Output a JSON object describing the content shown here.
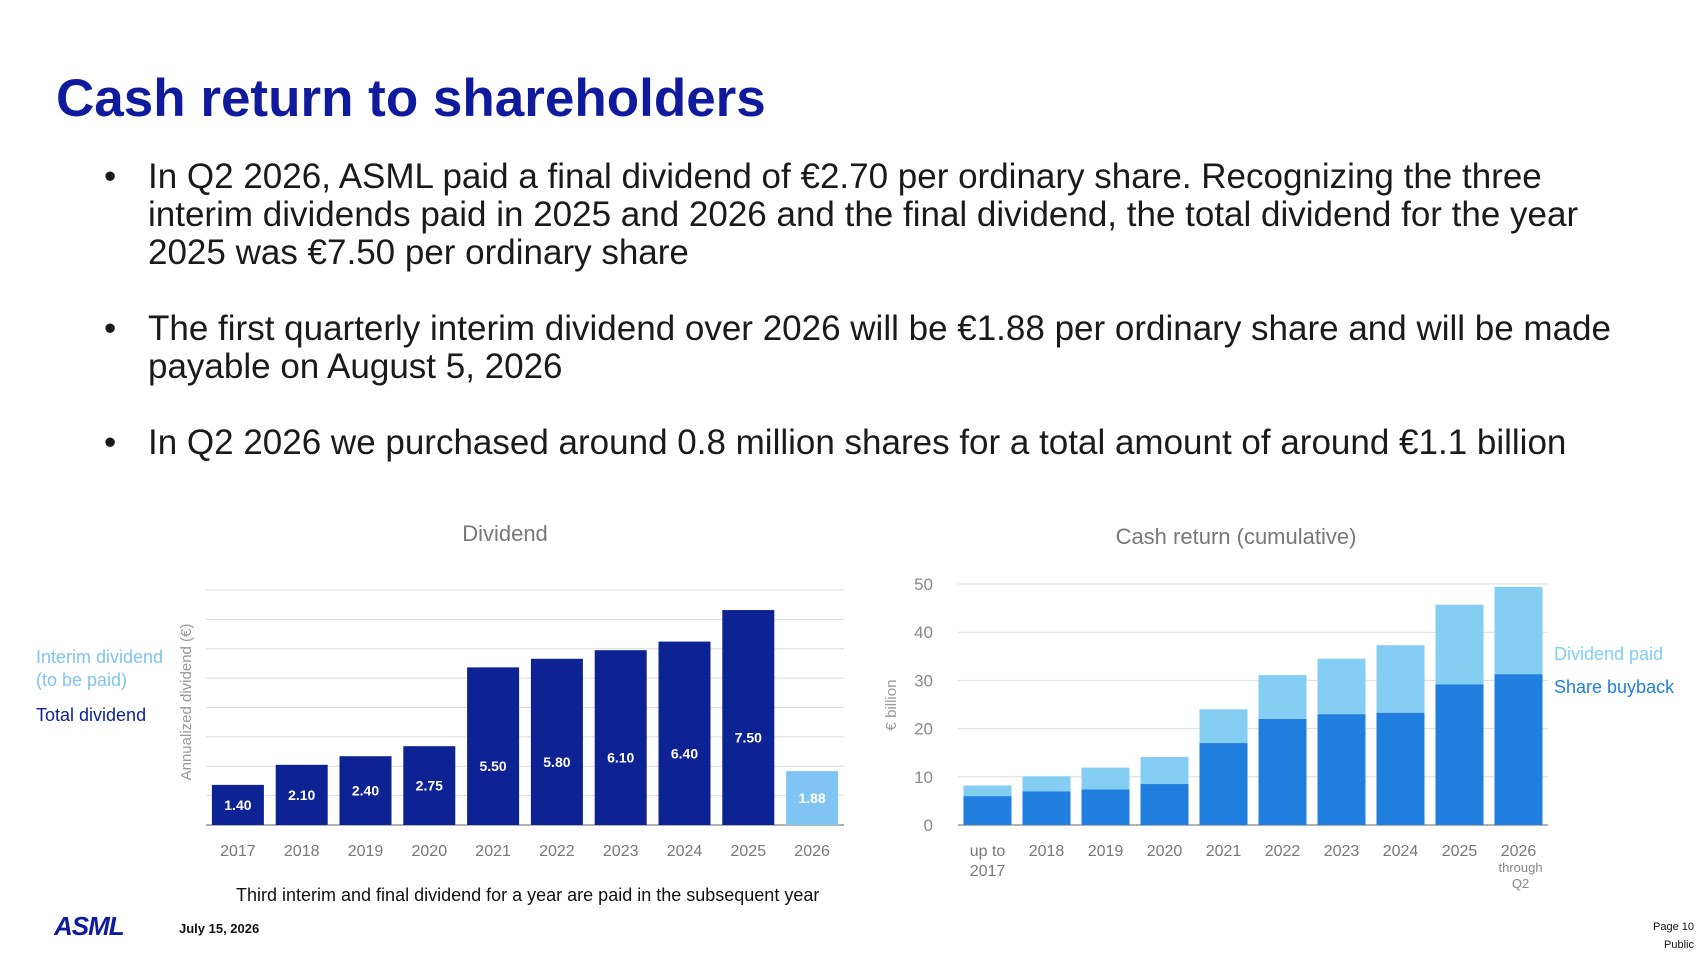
{
  "slide": {
    "title": "Cash return to shareholders",
    "bullets": [
      "In Q2 2026, ASML paid a final dividend of €2.70 per ordinary share. Recognizing the three interim dividends paid in 2025 and 2026 and the final dividend, the total dividend for the year 2025 was €7.50 per ordinary share",
      "The first quarterly interim dividend over 2026 will be €1.88 per ordinary share and will be made payable on August 5, 2026",
      "In Q2 2026 we purchased around 0.8 million shares for a total amount of around €1.1 billion"
    ],
    "bullet_glyph": "•",
    "footnote": "Third interim and final dividend for a year are paid in the subsequent year",
    "logo_text": "ASML",
    "date": "July 15, 2026",
    "page": "Page 10",
    "classification": "Public"
  },
  "chart_data": [
    {
      "type": "bar",
      "title": "Dividend",
      "ylabel": "Annualized dividend (€)",
      "xlabel": "",
      "categories": [
        "2017",
        "2018",
        "2019",
        "2020",
        "2021",
        "2022",
        "2023",
        "2024",
        "2025",
        "2026"
      ],
      "values": [
        1.4,
        2.1,
        2.4,
        2.75,
        5.5,
        5.8,
        6.1,
        6.4,
        7.5,
        1.88
      ],
      "value_labels": [
        "1.40",
        "2.10",
        "2.40",
        "2.75",
        "5.50",
        "5.80",
        "6.10",
        "6.40",
        "7.50",
        "1.88"
      ],
      "bar_kind": [
        "total",
        "total",
        "total",
        "total",
        "total",
        "total",
        "total",
        "total",
        "total",
        "interim"
      ],
      "ylim": [
        0,
        7.5
      ],
      "y_ticks_shown": false,
      "grid": true,
      "legend_position": "left",
      "legend": [
        {
          "label": "Interim dividend (to be paid)",
          "color": "#7fc4f2"
        },
        {
          "label": "Total dividend",
          "color": "#0d2394"
        }
      ],
      "colors": {
        "total": "#0d2394",
        "interim": "#7fc4f2"
      }
    },
    {
      "type": "bar",
      "stacked": true,
      "title": "Cash return (cumulative)",
      "ylabel": "€ billion",
      "xlabel": "",
      "categories": [
        "up to 2017",
        "2018",
        "2019",
        "2020",
        "2021",
        "2022",
        "2023",
        "2024",
        "2025",
        "2026"
      ],
      "category_sublabels": [
        "",
        "",
        "",
        "",
        "",
        "",
        "",
        "",
        "",
        "through Q2"
      ],
      "series": [
        {
          "name": "Share buyback",
          "color": "#1f7ede",
          "values": [
            6.0,
            7.0,
            7.4,
            8.5,
            17.0,
            22.0,
            23.0,
            23.3,
            29.2,
            31.3
          ]
        },
        {
          "name": "Dividend paid",
          "color": "#84cdf3",
          "values": [
            2.2,
            3.1,
            4.5,
            5.6,
            7.0,
            9.1,
            11.5,
            14.0,
            16.5,
            18.1
          ]
        }
      ],
      "ylim": [
        0,
        50
      ],
      "y_ticks": [
        0,
        10,
        20,
        30,
        40,
        50
      ],
      "grid": true,
      "legend_position": "right"
    }
  ]
}
